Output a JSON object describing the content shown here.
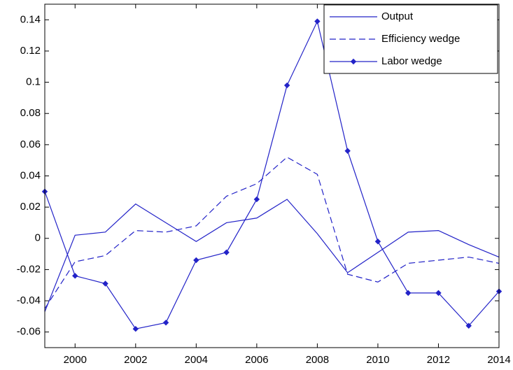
{
  "chart_data": {
    "type": "line",
    "x": [
      1999,
      2000,
      2001,
      2002,
      2003,
      2004,
      2005,
      2006,
      2007,
      2008,
      2009,
      2010,
      2011,
      2012,
      2013,
      2014
    ],
    "series": [
      {
        "name": "Output",
        "color": "#2323c8",
        "style": "solid",
        "marker": "none",
        "values": [
          -0.047,
          0.002,
          0.004,
          0.022,
          0.01,
          -0.002,
          0.01,
          0.013,
          0.025,
          0.003,
          -0.022,
          -0.009,
          0.004,
          0.005,
          -0.004,
          -0.012
        ]
      },
      {
        "name": "Efficiency wedge",
        "color": "#2323c8",
        "style": "dashed",
        "marker": "none",
        "values": [
          -0.045,
          -0.015,
          -0.011,
          0.005,
          0.004,
          0.008,
          0.027,
          0.035,
          0.052,
          0.041,
          -0.023,
          -0.028,
          -0.016,
          -0.014,
          -0.012,
          -0.016
        ]
      },
      {
        "name": "Labor wedge",
        "color": "#2323c8",
        "style": "solid",
        "marker": "diamond",
        "values": [
          0.03,
          -0.024,
          -0.029,
          -0.058,
          -0.054,
          -0.014,
          -0.009,
          0.025,
          0.098,
          0.139,
          0.056,
          -0.002,
          -0.035,
          -0.035,
          -0.056,
          -0.034
        ]
      }
    ],
    "xlim": [
      1999,
      2014
    ],
    "xticks": [
      2000,
      2002,
      2004,
      2006,
      2008,
      2010,
      2012,
      2014
    ],
    "ylim": [
      -0.07,
      0.15
    ],
    "yticks": [
      -0.06,
      -0.04,
      -0.02,
      0,
      0.02,
      0.04,
      0.06,
      0.08,
      0.1,
      0.12,
      0.14
    ],
    "grid": false,
    "legend": "northeast"
  }
}
